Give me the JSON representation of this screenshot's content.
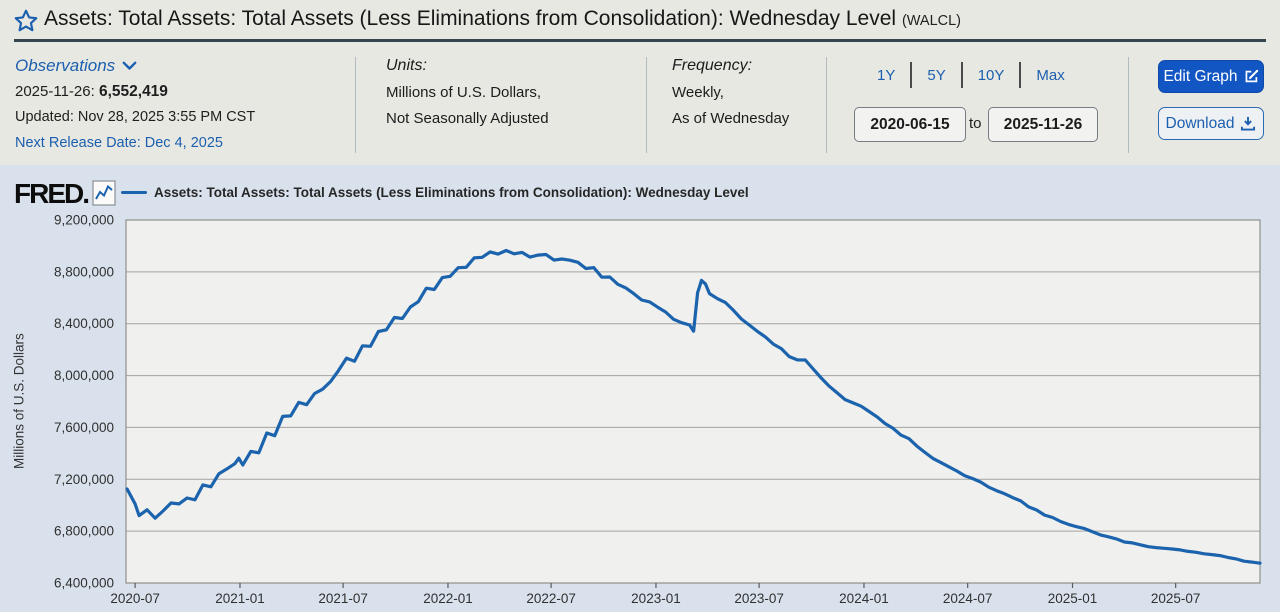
{
  "header": {
    "title": "Assets: Total Assets: Total Assets (Less Eliminations from Consolidation): Wednesday Level",
    "ticker": "(WALCL)"
  },
  "info_bar": {
    "observations": {
      "label": "Observations",
      "latest_date": "2025-11-26:",
      "latest_value": "6,552,419",
      "updated": "Updated: Nov 28, 2025 3:55 PM CST",
      "next_release": "Next Release Date: Dec 4, 2025"
    },
    "units": {
      "label": "Units:",
      "line1": "Millions of U.S. Dollars,",
      "line2": "Not Seasonally Adjusted"
    },
    "frequency": {
      "label": "Frequency:",
      "line1": "Weekly,",
      "line2": "As of Wednesday"
    },
    "range_buttons": [
      "1Y",
      "5Y",
      "10Y",
      "Max"
    ],
    "date_range": {
      "start": "2020-06-15",
      "to_label": "to",
      "end": "2025-11-26"
    },
    "actions": {
      "edit_graph": "Edit Graph",
      "download": "Download"
    }
  },
  "chart": {
    "brand": "FRED.",
    "legend": "Assets: Total Assets: Total Assets (Less Eliminations from Consolidation): Wednesday Level",
    "ylabel": "Millions of U.S. Dollars"
  },
  "colors": {
    "link_blue": "#1b5fae",
    "line_blue": "#1c63ae",
    "edit_button_bg": "#1256c4",
    "header_rule": "#36464f",
    "chart_bg": "#d9e2ec",
    "plot_bg": "#f0f0ee",
    "grid": "#a3a3a1",
    "plot_border": "#8f8f8d",
    "tick_text": "#303030"
  },
  "chart_data": {
    "type": "line",
    "title": "Assets: Total Assets: Total Assets (Less Eliminations from Consolidation): Wednesday Level",
    "xlabel": "",
    "ylabel": "Millions of U.S. Dollars",
    "ylim": [
      6400000,
      9200000
    ],
    "ytick_interval": 400000,
    "x_range": [
      "2020-06-15",
      "2025-11-26"
    ],
    "xticks": [
      "2020-07",
      "2021-01",
      "2021-07",
      "2022-01",
      "2022-07",
      "2023-01",
      "2023-07",
      "2024-01",
      "2024-07",
      "2025-01",
      "2025-07"
    ],
    "grid": true,
    "legend_position": "top",
    "line_color": "#1c63ae",
    "series": [
      {
        "name": "Assets: Total Assets: Total Assets (Less Eliminations from Consolidation): Wednesday Level",
        "points": [
          [
            "2020-06-17",
            7125000
          ],
          [
            "2020-07-01",
            7010000
          ],
          [
            "2020-07-08",
            6920000
          ],
          [
            "2020-07-22",
            6965000
          ],
          [
            "2020-08-05",
            6900000
          ],
          [
            "2020-08-19",
            6955000
          ],
          [
            "2020-09-02",
            7017000
          ],
          [
            "2020-09-16",
            7010000
          ],
          [
            "2020-09-30",
            7056000
          ],
          [
            "2020-10-14",
            7042000
          ],
          [
            "2020-10-28",
            7157000
          ],
          [
            "2020-11-11",
            7142000
          ],
          [
            "2020-11-25",
            7243000
          ],
          [
            "2020-12-09",
            7280000
          ],
          [
            "2020-12-23",
            7320000
          ],
          [
            "2020-12-30",
            7363000
          ],
          [
            "2021-01-06",
            7310000
          ],
          [
            "2021-01-20",
            7415000
          ],
          [
            "2021-02-03",
            7404000
          ],
          [
            "2021-02-17",
            7557000
          ],
          [
            "2021-03-03",
            7536000
          ],
          [
            "2021-03-17",
            7685000
          ],
          [
            "2021-03-31",
            7689000
          ],
          [
            "2021-04-14",
            7793000
          ],
          [
            "2021-04-28",
            7775000
          ],
          [
            "2021-05-12",
            7862000
          ],
          [
            "2021-05-26",
            7895000
          ],
          [
            "2021-06-09",
            7954000
          ],
          [
            "2021-06-23",
            8040000
          ],
          [
            "2021-07-07",
            8135000
          ],
          [
            "2021-07-21",
            8110000
          ],
          [
            "2021-08-04",
            8230000
          ],
          [
            "2021-08-18",
            8226000
          ],
          [
            "2021-09-01",
            8340000
          ],
          [
            "2021-09-15",
            8353000
          ],
          [
            "2021-09-29",
            8448000
          ],
          [
            "2021-10-13",
            8440000
          ],
          [
            "2021-10-27",
            8529000
          ],
          [
            "2021-11-10",
            8570000
          ],
          [
            "2021-11-24",
            8674000
          ],
          [
            "2021-12-08",
            8664000
          ],
          [
            "2021-12-22",
            8756000
          ],
          [
            "2022-01-05",
            8766000
          ],
          [
            "2022-01-19",
            8832000
          ],
          [
            "2022-02-02",
            8835000
          ],
          [
            "2022-02-16",
            8908000
          ],
          [
            "2022-03-02",
            8912000
          ],
          [
            "2022-03-16",
            8954000
          ],
          [
            "2022-03-30",
            8937000
          ],
          [
            "2022-04-13",
            8965000
          ],
          [
            "2022-04-27",
            8939000
          ],
          [
            "2022-05-11",
            8950000
          ],
          [
            "2022-05-25",
            8914000
          ],
          [
            "2022-06-08",
            8929000
          ],
          [
            "2022-06-22",
            8934000
          ],
          [
            "2022-07-06",
            8891000
          ],
          [
            "2022-07-20",
            8899000
          ],
          [
            "2022-08-03",
            8890000
          ],
          [
            "2022-08-17",
            8874000
          ],
          [
            "2022-08-31",
            8826000
          ],
          [
            "2022-09-14",
            8833000
          ],
          [
            "2022-09-28",
            8759000
          ],
          [
            "2022-10-12",
            8760000
          ],
          [
            "2022-10-26",
            8704000
          ],
          [
            "2022-11-09",
            8676000
          ],
          [
            "2022-11-23",
            8632000
          ],
          [
            "2022-12-07",
            8583000
          ],
          [
            "2022-12-21",
            8568000
          ],
          [
            "2023-01-04",
            8527000
          ],
          [
            "2023-01-18",
            8490000
          ],
          [
            "2023-02-01",
            8434000
          ],
          [
            "2023-02-15",
            8408000
          ],
          [
            "2023-03-01",
            8390000
          ],
          [
            "2023-03-08",
            8342000
          ],
          [
            "2023-03-15",
            8639000
          ],
          [
            "2023-03-22",
            8734000
          ],
          [
            "2023-03-29",
            8706000
          ],
          [
            "2023-04-05",
            8632000
          ],
          [
            "2023-04-19",
            8593000
          ],
          [
            "2023-05-03",
            8563000
          ],
          [
            "2023-05-17",
            8503000
          ],
          [
            "2023-05-31",
            8436000
          ],
          [
            "2023-06-14",
            8389000
          ],
          [
            "2023-06-28",
            8341000
          ],
          [
            "2023-07-12",
            8298000
          ],
          [
            "2023-07-26",
            8243000
          ],
          [
            "2023-08-09",
            8208000
          ],
          [
            "2023-08-23",
            8146000
          ],
          [
            "2023-09-06",
            8121000
          ],
          [
            "2023-09-20",
            8120000
          ],
          [
            "2023-10-04",
            8051000
          ],
          [
            "2023-10-18",
            7981000
          ],
          [
            "2023-11-01",
            7918000
          ],
          [
            "2023-11-15",
            7866000
          ],
          [
            "2023-11-29",
            7815000
          ],
          [
            "2023-12-13",
            7789000
          ],
          [
            "2023-12-27",
            7764000
          ],
          [
            "2024-01-10",
            7723000
          ],
          [
            "2024-01-24",
            7681000
          ],
          [
            "2024-02-07",
            7630000
          ],
          [
            "2024-02-21",
            7593000
          ],
          [
            "2024-03-06",
            7541000
          ],
          [
            "2024-03-20",
            7513000
          ],
          [
            "2024-04-03",
            7455000
          ],
          [
            "2024-04-17",
            7407000
          ],
          [
            "2024-05-01",
            7361000
          ],
          [
            "2024-05-15",
            7329000
          ],
          [
            "2024-05-29",
            7296000
          ],
          [
            "2024-06-12",
            7264000
          ],
          [
            "2024-06-26",
            7227000
          ],
          [
            "2024-07-10",
            7205000
          ],
          [
            "2024-07-24",
            7178000
          ],
          [
            "2024-08-07",
            7139000
          ],
          [
            "2024-08-21",
            7112000
          ],
          [
            "2024-09-04",
            7088000
          ],
          [
            "2024-09-18",
            7059000
          ],
          [
            "2024-10-02",
            7033000
          ],
          [
            "2024-10-16",
            6987000
          ],
          [
            "2024-10-30",
            6963000
          ],
          [
            "2024-11-13",
            6924000
          ],
          [
            "2024-11-27",
            6905000
          ],
          [
            "2024-12-11",
            6874000
          ],
          [
            "2024-12-25",
            6852000
          ],
          [
            "2025-01-08",
            6834000
          ],
          [
            "2025-01-22",
            6820000
          ],
          [
            "2025-02-05",
            6796000
          ],
          [
            "2025-02-19",
            6771000
          ],
          [
            "2025-03-05",
            6756000
          ],
          [
            "2025-03-19",
            6740000
          ],
          [
            "2025-04-02",
            6716000
          ],
          [
            "2025-04-16",
            6709000
          ],
          [
            "2025-04-30",
            6695000
          ],
          [
            "2025-05-14",
            6680000
          ],
          [
            "2025-05-28",
            6673000
          ],
          [
            "2025-06-11",
            6668000
          ],
          [
            "2025-06-25",
            6662000
          ],
          [
            "2025-07-09",
            6655000
          ],
          [
            "2025-07-23",
            6644000
          ],
          [
            "2025-08-06",
            6637000
          ],
          [
            "2025-08-20",
            6625000
          ],
          [
            "2025-09-03",
            6619000
          ],
          [
            "2025-09-17",
            6611000
          ],
          [
            "2025-10-01",
            6597000
          ],
          [
            "2025-10-15",
            6586000
          ],
          [
            "2025-10-29",
            6568000
          ],
          [
            "2025-11-12",
            6561000
          ],
          [
            "2025-11-26",
            6552419
          ]
        ]
      }
    ]
  }
}
